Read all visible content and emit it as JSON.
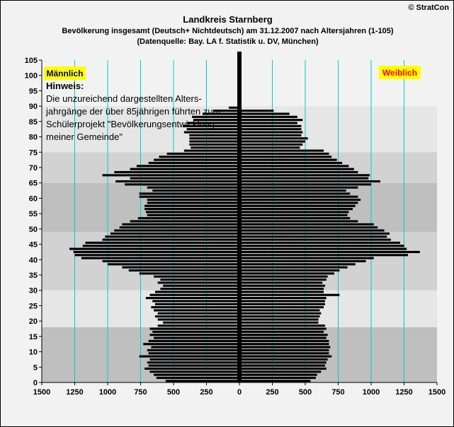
{
  "header": {
    "copyright": "© StratCon",
    "title": "Landkreis Starnberg",
    "subtitle": "Bevölkerung  insgesamt (Deutsch+ Nichtdeutsch) am 31.12.2007 nach Altersjahren (1-105)",
    "source": "(Datenquelle: Bay. LA f. Statistik u. DV, München)"
  },
  "annotation": {
    "title": "Hinweis:",
    "lines": [
      "Die unzureichend dargestellten Alters-",
      "jahrgänge der über 85jährigen führten zum",
      "Schülerprojekt \"Bevölkerungsentwicklung",
      "meiner Gemeinde\""
    ]
  },
  "colors": {
    "background": "#f2f2f2",
    "band_light": "#e6e6e6",
    "band_mid": "#d2d2d2",
    "band_dark": "#bfbfbf",
    "bar": "#000000",
    "gridline": "#00cccc",
    "legend_bg": "#ffff00",
    "male_label": "#000080",
    "female_label": "#ff0000"
  },
  "chart_data": {
    "type": "bar",
    "orientation": "horizontal population pyramid",
    "legend_placement": "top-left (Männlich) and top-right (Weiblich)",
    "series": [
      {
        "name": "Männlich",
        "side": "left",
        "values": [
          560,
          630,
          650,
          680,
          720,
          690,
          700,
          680,
          760,
          690,
          700,
          670,
          730,
          690,
          650,
          680,
          660,
          680,
          620,
          580,
          620,
          640,
          620,
          650,
          670,
          640,
          660,
          710,
          680,
          640,
          600,
          580,
          620,
          600,
          650,
          760,
          840,
          890,
          1000,
          1040,
          1200,
          1250,
          1260,
          1290,
          1190,
          1170,
          1040,
          1020,
          980,
          950,
          910,
          890,
          830,
          770,
          700,
          710,
          720,
          720,
          700,
          700,
          760,
          760,
          660,
          700,
          870,
          940,
          830,
          1040,
          950,
          830,
          780,
          690,
          650,
          610,
          550,
          420,
          370,
          380,
          380,
          380,
          380,
          420,
          400,
          430,
          400,
          350,
          360,
          280,
          200,
          80,
          0,
          0,
          0,
          0,
          0,
          0,
          0,
          0,
          0,
          0,
          0,
          0,
          0,
          0,
          0
        ]
      },
      {
        "name": "Weiblich",
        "side": "right",
        "values": [
          540,
          580,
          590,
          620,
          660,
          650,
          660,
          670,
          700,
          680,
          680,
          690,
          680,
          680,
          660,
          670,
          640,
          660,
          650,
          600,
          600,
          610,
          620,
          610,
          640,
          650,
          650,
          660,
          760,
          640,
          640,
          650,
          630,
          660,
          670,
          720,
          760,
          820,
          880,
          960,
          1020,
          1280,
          1370,
          1270,
          1250,
          1220,
          1150,
          1120,
          1140,
          1100,
          1050,
          1020,
          900,
          840,
          820,
          830,
          860,
          880,
          900,
          920,
          900,
          840,
          810,
          900,
          1000,
          1070,
          980,
          990,
          900,
          870,
          830,
          780,
          740,
          700,
          680,
          640,
          460,
          480,
          500,
          520,
          470,
          480,
          470,
          470,
          440,
          480,
          440,
          380,
          260,
          0,
          0,
          0,
          0,
          0,
          0,
          0,
          0,
          0,
          0,
          0,
          0,
          0,
          0,
          0,
          0
        ]
      }
    ],
    "ages": "0-105, one bar per age year, age 0 at bottom",
    "y_ticks": [
      "0",
      "5",
      "10",
      "15",
      "20",
      "25",
      "30",
      "35",
      "40",
      "45",
      "50",
      "55",
      "60",
      "65",
      "70",
      "75",
      "80",
      "85",
      "90",
      "95",
      "100",
      "105"
    ],
    "x_ticks": [
      "1500",
      "1250",
      "1000",
      "750",
      "500",
      "250",
      "0",
      "250",
      "500",
      "750",
      "1000",
      "1250",
      "1500"
    ],
    "xlim": [
      -1500,
      1500
    ],
    "ylim": [
      0,
      105
    ],
    "grid": "vertical lines every 250",
    "age_bands": [
      [
        0,
        18,
        "dark"
      ],
      [
        18,
        30,
        "light"
      ],
      [
        30,
        49,
        "mid"
      ],
      [
        49,
        65,
        "dark"
      ],
      [
        65,
        75,
        "mid"
      ],
      [
        75,
        90,
        "light"
      ],
      [
        90,
        105,
        "background"
      ]
    ]
  }
}
